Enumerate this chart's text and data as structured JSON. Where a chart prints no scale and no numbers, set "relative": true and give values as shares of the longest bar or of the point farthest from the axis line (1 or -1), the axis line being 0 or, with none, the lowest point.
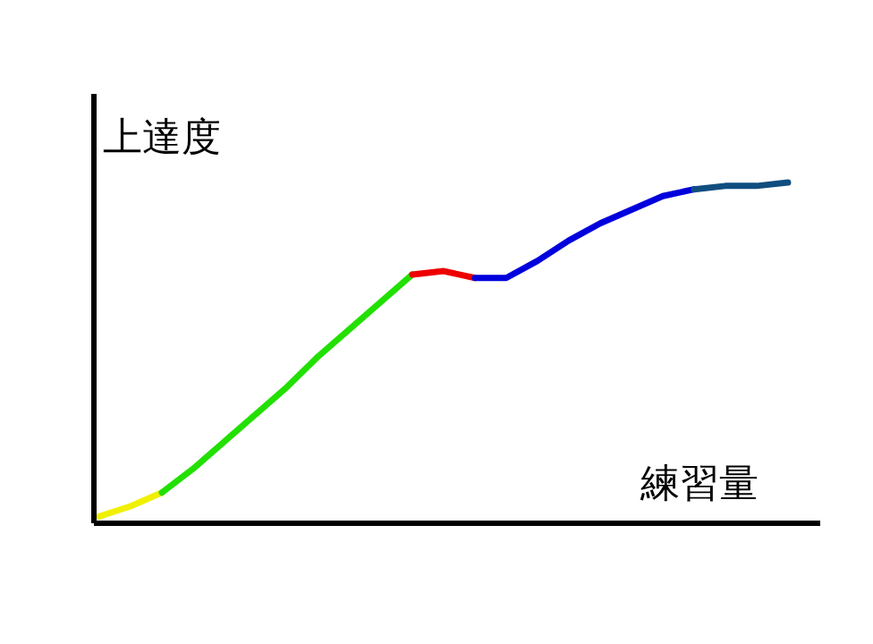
{
  "chart_data": {
    "type": "line",
    "relative": true,
    "xlabel": "練習量",
    "ylabel": "上達度",
    "categories": [
      null,
      null,
      null,
      null,
      null,
      null,
      null,
      null,
      null,
      null,
      null,
      null,
      null,
      null,
      null,
      null,
      null,
      null,
      null,
      null,
      null,
      null,
      null
    ],
    "series": [
      {
        "color": "#f0f000",
        "values": [
          0.02,
          0.05,
          0.09,
          null,
          null,
          null,
          null,
          null,
          null,
          null,
          null,
          null,
          null,
          null,
          null,
          null,
          null,
          null,
          null,
          null,
          null,
          null,
          null
        ]
      },
      {
        "color": "#22e000",
        "values": [
          null,
          null,
          0.09,
          0.16,
          0.24,
          0.32,
          0.4,
          0.49,
          0.57,
          0.65,
          0.73,
          null,
          null,
          null,
          null,
          null,
          null,
          null,
          null,
          null,
          null,
          null,
          null
        ]
      },
      {
        "color": "#ee0000",
        "values": [
          null,
          null,
          null,
          null,
          null,
          null,
          null,
          null,
          null,
          null,
          0.73,
          0.74,
          0.72,
          null,
          null,
          null,
          null,
          null,
          null,
          null,
          null,
          null,
          null
        ]
      },
      {
        "color": "#0000dd",
        "values": [
          null,
          null,
          null,
          null,
          null,
          null,
          null,
          null,
          null,
          null,
          null,
          null,
          0.72,
          0.72,
          0.77,
          0.83,
          0.88,
          0.92,
          0.96,
          0.98,
          null,
          null,
          null
        ]
      },
      {
        "color": "#104e80",
        "values": [
          null,
          null,
          null,
          null,
          null,
          null,
          null,
          null,
          null,
          null,
          null,
          null,
          null,
          null,
          null,
          null,
          null,
          null,
          null,
          0.98,
          0.99,
          0.99,
          1.0
        ]
      }
    ]
  }
}
